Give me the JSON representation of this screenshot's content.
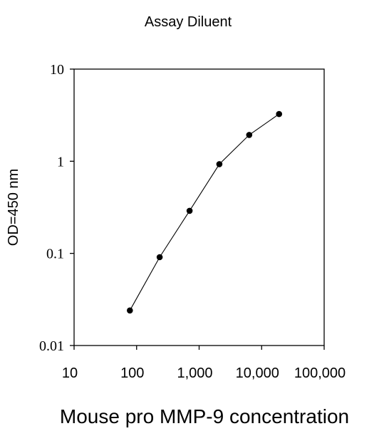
{
  "chart_data": {
    "type": "line",
    "title": "Assay Diluent",
    "xlabel": "Mouse pro MMP-9 concentration",
    "ylabel": "OD=450 nm",
    "x_scale": "log",
    "y_scale": "log",
    "xlim": [
      10,
      100000
    ],
    "ylim": [
      0.01,
      10
    ],
    "x_ticks": [
      {
        "value": 10,
        "label": "10"
      },
      {
        "value": 100,
        "label": "100"
      },
      {
        "value": 1000,
        "label": "1,000"
      },
      {
        "value": 10000,
        "label": "10,000"
      },
      {
        "value": 100000,
        "label": "100,000"
      }
    ],
    "y_ticks": [
      {
        "value": 0.01,
        "label": "0.01"
      },
      {
        "value": 0.1,
        "label": "0.1"
      },
      {
        "value": 1,
        "label": "1"
      },
      {
        "value": 10,
        "label": "10"
      }
    ],
    "grid": false,
    "legend": "none",
    "series": [
      {
        "color": "#000000",
        "marker": "circle",
        "x": [
          78,
          234,
          703,
          2109,
          6328,
          18984
        ],
        "y": [
          0.024,
          0.091,
          0.29,
          0.93,
          1.93,
          3.25
        ]
      }
    ]
  }
}
